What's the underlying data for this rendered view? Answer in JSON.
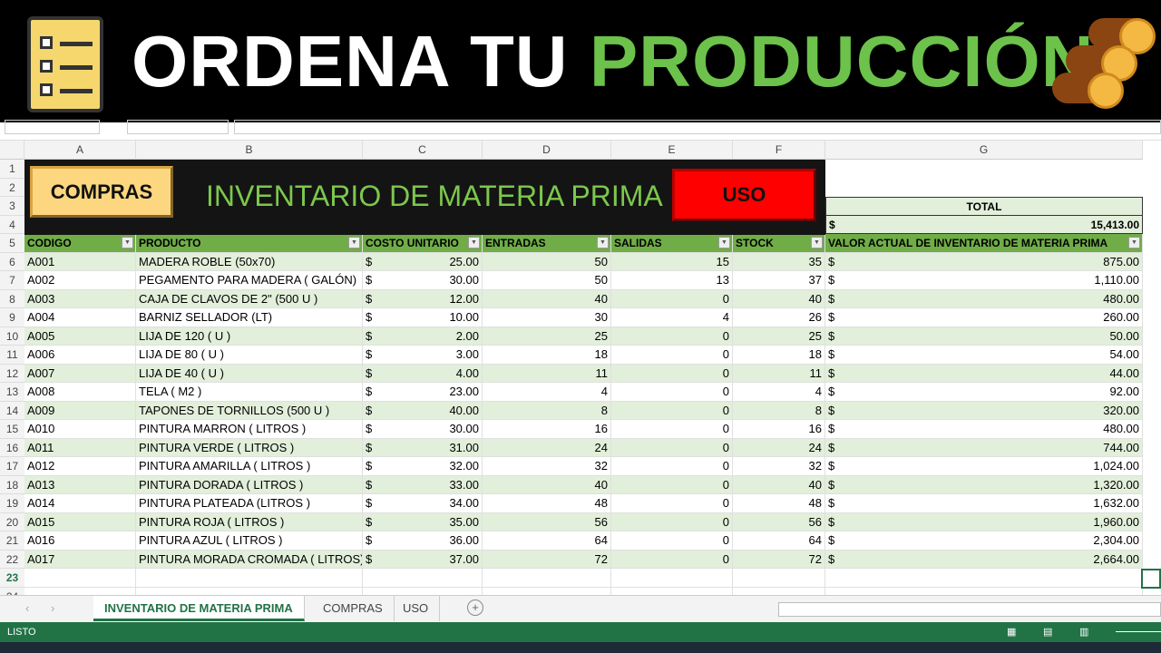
{
  "banner": {
    "title_white": "ORDENA TU ",
    "title_green": "PRODUCCIÓN",
    "icons": [
      "clipboard-checklist-icon",
      "wood-logs-icon"
    ]
  },
  "columns": [
    "A",
    "B",
    "C",
    "D",
    "E",
    "F",
    "G"
  ],
  "buttons": {
    "compras": "COMPRAS",
    "uso": "USO"
  },
  "sheet_title": "INVENTARIO DE MATERIA PRIMA",
  "total": {
    "label": "TOTAL",
    "currency": "$",
    "value": "15,413.00"
  },
  "headers": [
    "CODIGO",
    "PRODUCTO",
    "COSTO UNITARIO",
    "ENTRADAS",
    "SALIDAS",
    "STOCK",
    "VALOR ACTUAL DE INVENTARIO DE MATERIA PRIMA"
  ],
  "rows": [
    [
      "A001",
      "MADERA  ROBLE  (50x70)",
      "25.00",
      "50",
      "15",
      "35",
      "875.00"
    ],
    [
      "A002",
      "PEGAMENTO PARA MADERA ( GALÓN)",
      "30.00",
      "50",
      "13",
      "37",
      "1,110.00"
    ],
    [
      "A003",
      "CAJA DE CLAVOS DE 2\"  (500 U )",
      "12.00",
      "40",
      "0",
      "40",
      "480.00"
    ],
    [
      "A004",
      "BARNIZ SELLADOR (LT)",
      "10.00",
      "30",
      "4",
      "26",
      "260.00"
    ],
    [
      "A005",
      "LIJA DE 120 ( U )",
      "2.00",
      "25",
      "0",
      "25",
      "50.00"
    ],
    [
      "A006",
      "LIJA DE 80 ( U )",
      "3.00",
      "18",
      "0",
      "18",
      "54.00"
    ],
    [
      "A007",
      "LIJA DE 40  ( U )",
      "4.00",
      "11",
      "0",
      "11",
      "44.00"
    ],
    [
      "A008",
      "TELA ( M2 )",
      "23.00",
      "4",
      "0",
      "4",
      "92.00"
    ],
    [
      "A009",
      "TAPONES DE TORNILLOS (500 U )",
      "40.00",
      "8",
      "0",
      "8",
      "320.00"
    ],
    [
      "A010",
      "PINTURA MARRON ( LITROS )",
      "30.00",
      "16",
      "0",
      "16",
      "480.00"
    ],
    [
      "A011",
      "PINTURA VERDE ( LITROS )",
      "31.00",
      "24",
      "0",
      "24",
      "744.00"
    ],
    [
      "A012",
      "PINTURA AMARILLA ( LITROS )",
      "32.00",
      "32",
      "0",
      "32",
      "1,024.00"
    ],
    [
      "A013",
      "PINTURA DORADA ( LITROS )",
      "33.00",
      "40",
      "0",
      "40",
      "1,320.00"
    ],
    [
      "A014",
      "PINTURA PLATEADA (LITROS )",
      "34.00",
      "48",
      "0",
      "48",
      "1,632.00"
    ],
    [
      "A015",
      "PINTURA ROJA ( LITROS )",
      "35.00",
      "56",
      "0",
      "56",
      "1,960.00"
    ],
    [
      "A016",
      "PINTURA AZUL ( LITROS )",
      "36.00",
      "64",
      "0",
      "64",
      "2,304.00"
    ],
    [
      "A017",
      "PINTURA MORADA CROMADA ( LITROS)",
      "37.00",
      "72",
      "0",
      "72",
      "2,664.00"
    ]
  ],
  "currency": "$",
  "tabs": [
    "INVENTARIO DE  MATERIA PRIMA",
    "COMPRAS",
    "USO"
  ],
  "status": "LISTO",
  "colors": {
    "header_green": "#70ad47",
    "band_green": "#e2efda",
    "excel_green": "#217346",
    "title_green": "#7cc84c"
  }
}
